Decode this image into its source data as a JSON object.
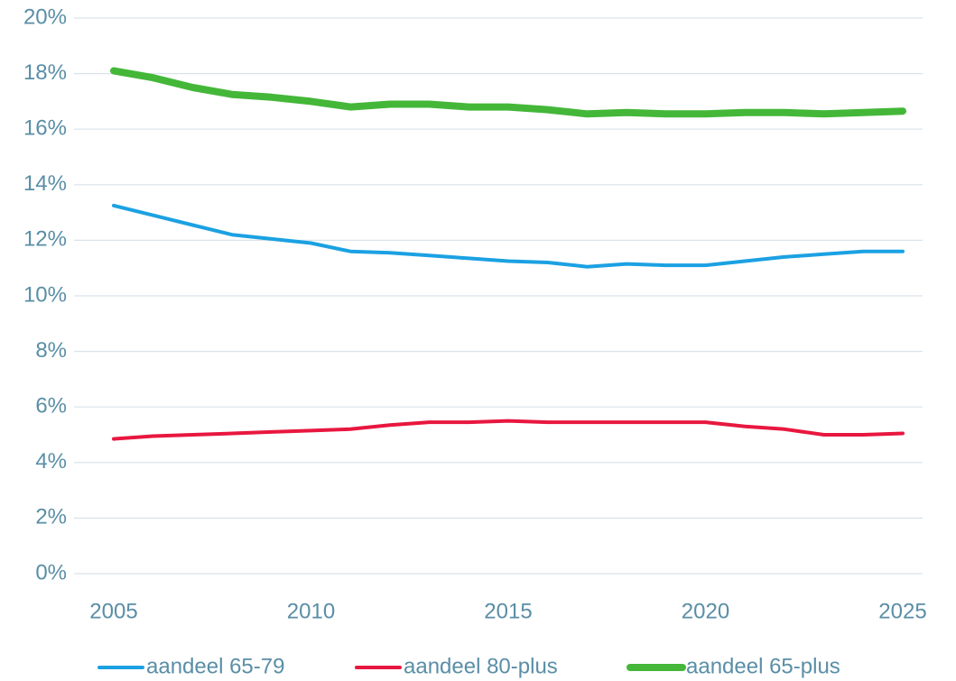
{
  "chart_data": {
    "type": "line",
    "x": [
      2005,
      2006,
      2007,
      2008,
      2009,
      2010,
      2011,
      2012,
      2013,
      2014,
      2015,
      2016,
      2017,
      2018,
      2019,
      2020,
      2021,
      2022,
      2023,
      2024,
      2025
    ],
    "series": [
      {
        "name": "aandeel 65-79",
        "color": "#1ba1e2",
        "values": [
          13.25,
          12.9,
          12.55,
          12.2,
          12.05,
          11.9,
          11.6,
          11.55,
          11.45,
          11.35,
          11.25,
          11.2,
          11.05,
          11.15,
          11.1,
          11.1,
          11.25,
          11.4,
          11.5,
          11.6,
          11.6
        ]
      },
      {
        "name": "aandeel 80-plus",
        "color": "#e8173f",
        "values": [
          4.85,
          4.95,
          5.0,
          5.05,
          5.1,
          5.15,
          5.2,
          5.35,
          5.45,
          5.45,
          5.5,
          5.45,
          5.45,
          5.45,
          5.45,
          5.45,
          5.3,
          5.2,
          5.0,
          5.0,
          5.05
        ]
      },
      {
        "name": "aandeel 65-plus",
        "color": "#44b739",
        "values": [
          18.1,
          17.85,
          17.5,
          17.25,
          17.15,
          17.0,
          16.8,
          16.9,
          16.9,
          16.8,
          16.8,
          16.7,
          16.55,
          16.6,
          16.55,
          16.55,
          16.6,
          16.6,
          16.55,
          16.6,
          16.65
        ]
      }
    ],
    "xlim": [
      2005,
      2025
    ],
    "xticks": [
      2005,
      2010,
      2015,
      2020,
      2025
    ],
    "ylim": [
      0,
      20
    ],
    "yticks": [
      {
        "value": 0,
        "label": "0%"
      },
      {
        "value": 2,
        "label": "2%"
      },
      {
        "value": 4,
        "label": "4%"
      },
      {
        "value": 6,
        "label": "6%"
      },
      {
        "value": 8,
        "label": "8%"
      },
      {
        "value": 10,
        "label": "10%"
      },
      {
        "value": 12,
        "label": "12%"
      },
      {
        "value": 14,
        "label": "14%"
      },
      {
        "value": 16,
        "label": "16%"
      },
      {
        "value": 18,
        "label": "18%"
      },
      {
        "value": 20,
        "label": "20%"
      }
    ],
    "grid": true,
    "legend": "bottom"
  }
}
